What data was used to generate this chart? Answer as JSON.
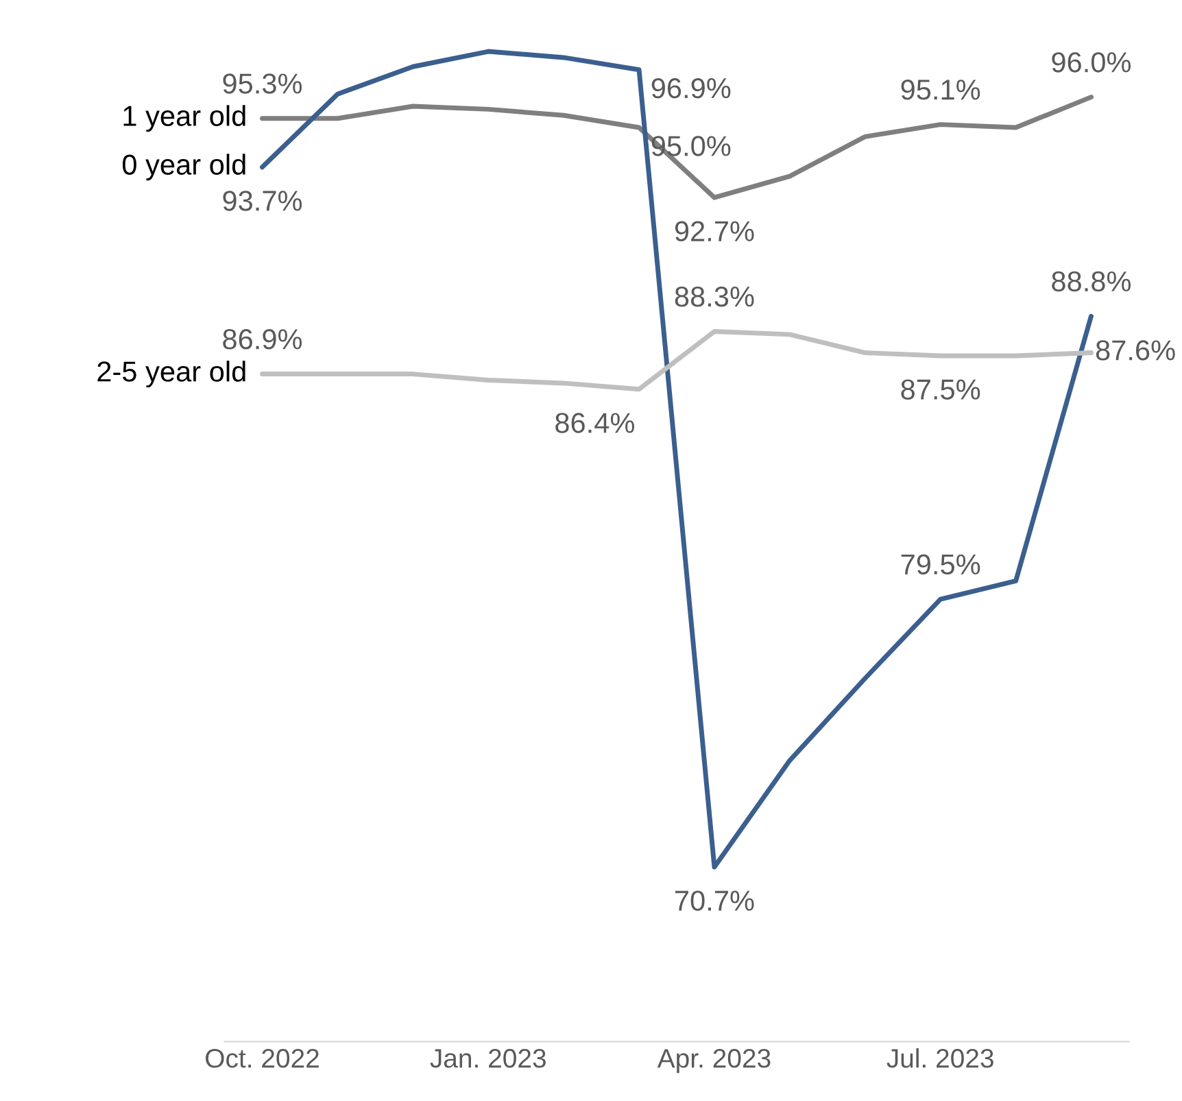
{
  "chart_data": {
    "type": "line",
    "categories": [
      "Oct. 2022",
      null,
      null,
      "Jan. 2023",
      null,
      null,
      "Apr. 2023",
      null,
      null,
      "Jul. 2023",
      null,
      null
    ],
    "series": [
      {
        "name": "1 year old",
        "color": "#7f7f7f",
        "values": [
          95.3,
          95.3,
          95.7,
          95.6,
          95.4,
          95.0,
          92.7,
          93.4,
          94.7,
          95.1,
          95.0,
          96.0
        ],
        "value_labels": [
          "95.3%",
          null,
          null,
          null,
          null,
          "95.0%",
          "92.7%",
          null,
          null,
          "95.1%",
          null,
          "96.0%"
        ]
      },
      {
        "name": "0 year old",
        "color": "#3b5f8e",
        "values": [
          93.7,
          96.1,
          97.0,
          97.5,
          97.3,
          96.9,
          70.7,
          74.2,
          76.9,
          79.5,
          80.1,
          88.8
        ],
        "value_labels": [
          "93.7%",
          null,
          null,
          null,
          null,
          "96.9%",
          "70.7%",
          null,
          null,
          "79.5%",
          null,
          "88.8%"
        ]
      },
      {
        "name": "2-5 year old",
        "color": "#bfbfbf",
        "values": [
          86.9,
          86.9,
          86.9,
          86.7,
          86.6,
          86.4,
          88.3,
          88.2,
          87.6,
          87.5,
          87.5,
          87.6
        ],
        "value_labels": [
          "86.9%",
          null,
          null,
          null,
          null,
          "86.4%",
          "88.3%",
          null,
          null,
          "87.5%",
          null,
          "87.6%"
        ]
      }
    ],
    "tick_labels": "x",
    "grid": false,
    "legend": false,
    "marker": "none",
    "line_style": "solid"
  }
}
